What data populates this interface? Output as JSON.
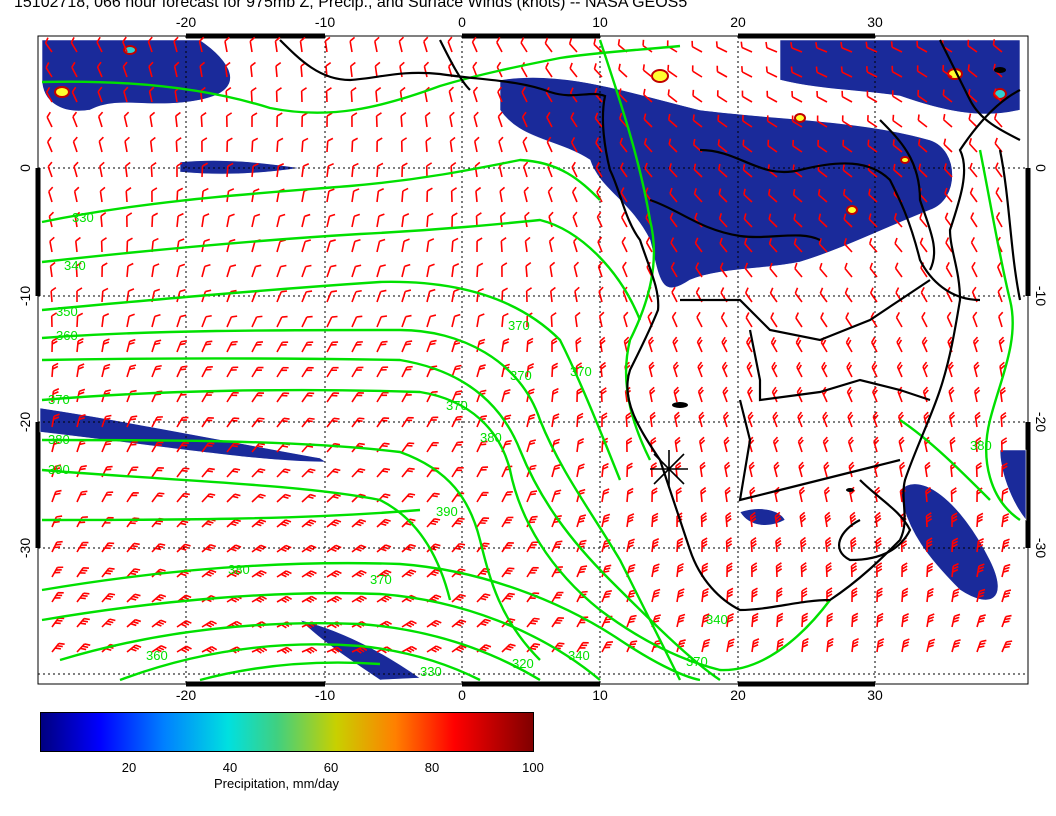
{
  "title": "15102718, 066 hour forecast for 975mb Z, Precip., and Surface Winds (knots) -- NASA GEOS5",
  "map": {
    "lon_labels": [
      "-20",
      "-10",
      "0",
      "10",
      "20",
      "30"
    ],
    "lat_labels": [
      "0",
      "-10",
      "-20",
      "-30"
    ],
    "contour_labels": [
      "330",
      "340",
      "350",
      "360",
      "370",
      "380",
      "390",
      "320"
    ],
    "colors": {
      "contour": "#00e000",
      "barb": "#ff0000",
      "coast": "#000000",
      "precip_low": "#1a2a9a"
    }
  },
  "colorbar": {
    "ticks": [
      "20",
      "40",
      "60",
      "80",
      "100"
    ],
    "label": "Precipitation, mm/day"
  }
}
